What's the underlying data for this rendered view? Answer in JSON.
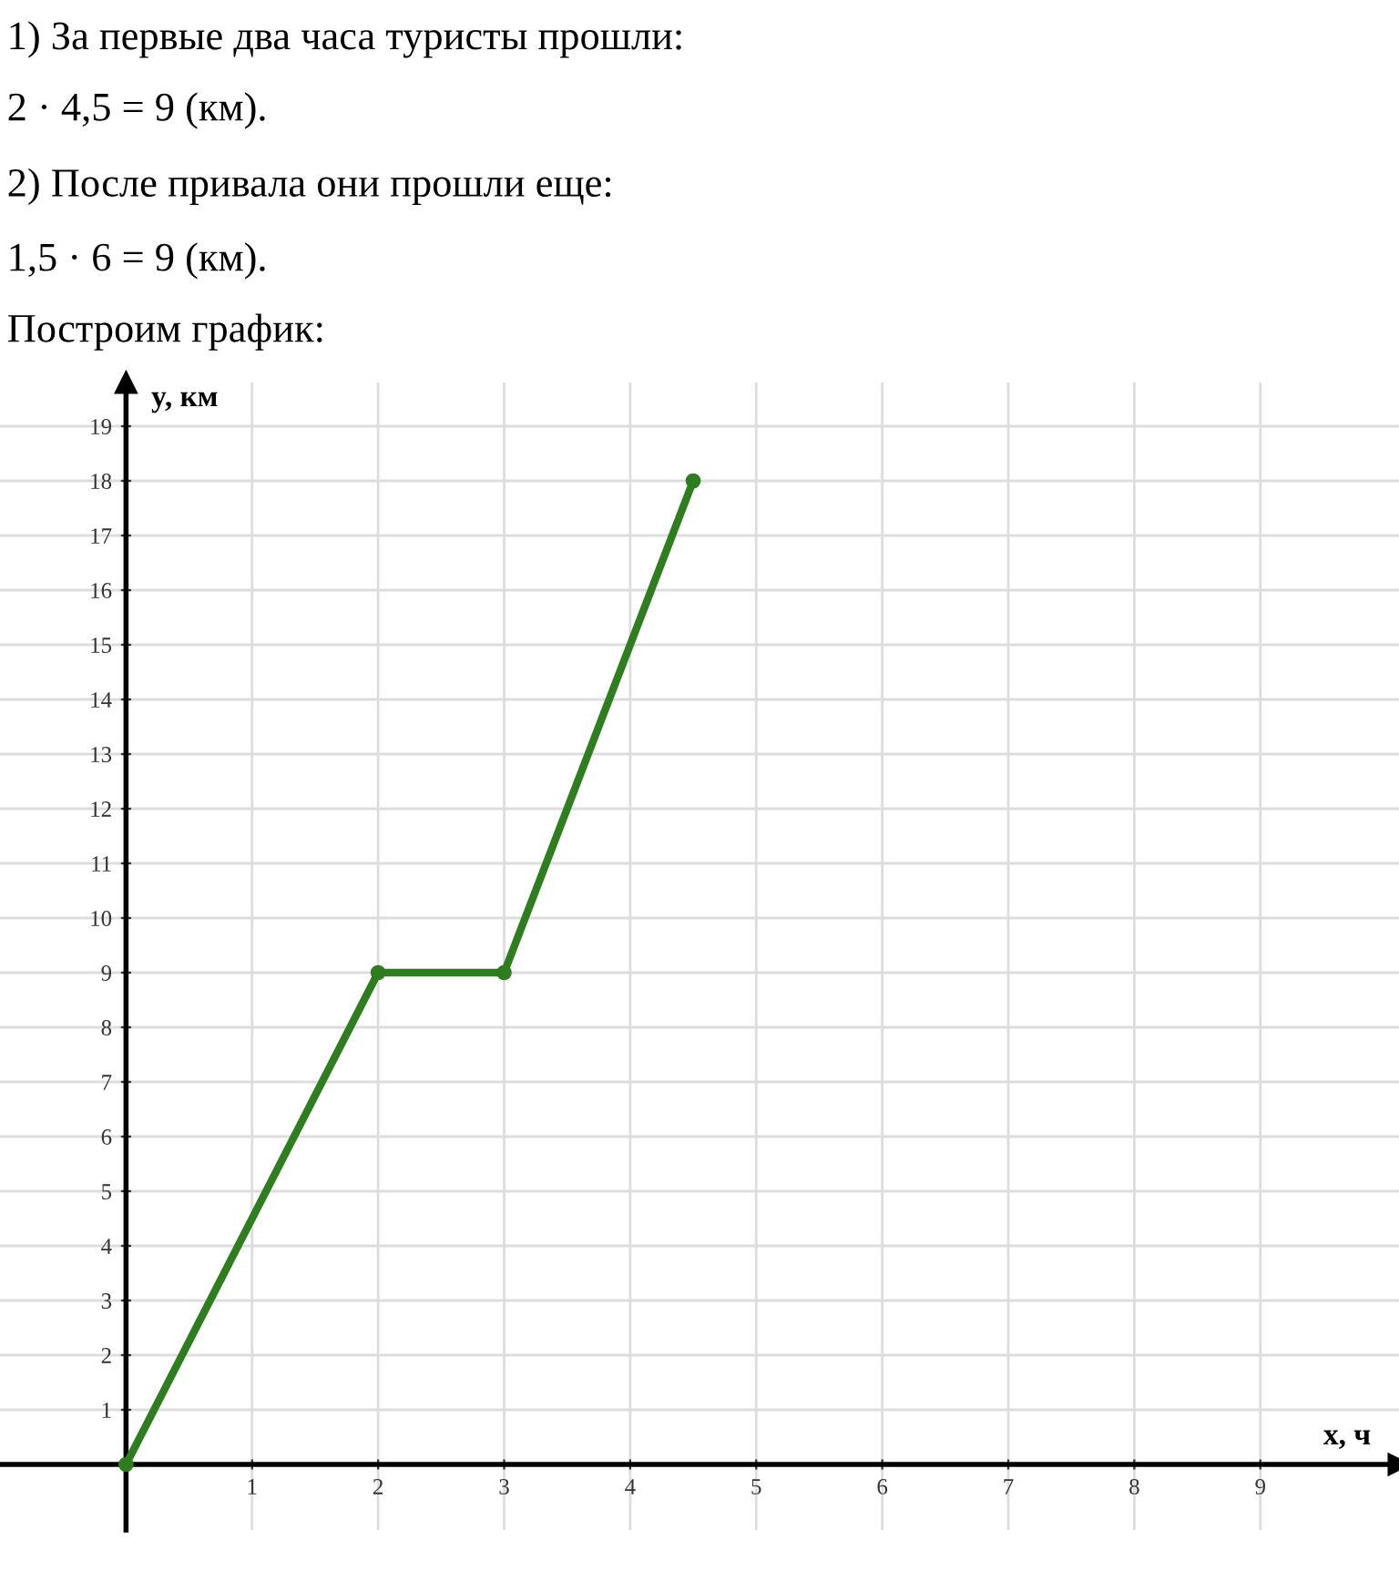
{
  "chart_data": {
    "type": "line",
    "annotations": [
      "1) За первые два часа туристы прошли:",
      "2 · 4,5 = 9 (км).",
      "2) После привала они прошли еще:",
      "1,5 · 6 = 9 (км).",
      "Построим график:"
    ],
    "xlabel": "x, ч",
    "ylabel": "y, км",
    "x": [
      0,
      2,
      3,
      4.5
    ],
    "series": [
      {
        "color": "#2e7d1e",
        "values": [
          0,
          9,
          9,
          18
        ]
      }
    ],
    "xlim": [
      -1,
      10.1
    ],
    "ylim": [
      -1.2,
      19.8
    ],
    "xticks": [
      1,
      2,
      3,
      4,
      5,
      6,
      7,
      8,
      9
    ],
    "yticks": [
      1,
      2,
      3,
      4,
      5,
      6,
      7,
      8,
      9,
      10,
      11,
      12,
      13,
      14,
      15,
      16,
      17,
      18,
      19
    ],
    "grid": true,
    "marker": "circle",
    "line_style": "solid"
  }
}
